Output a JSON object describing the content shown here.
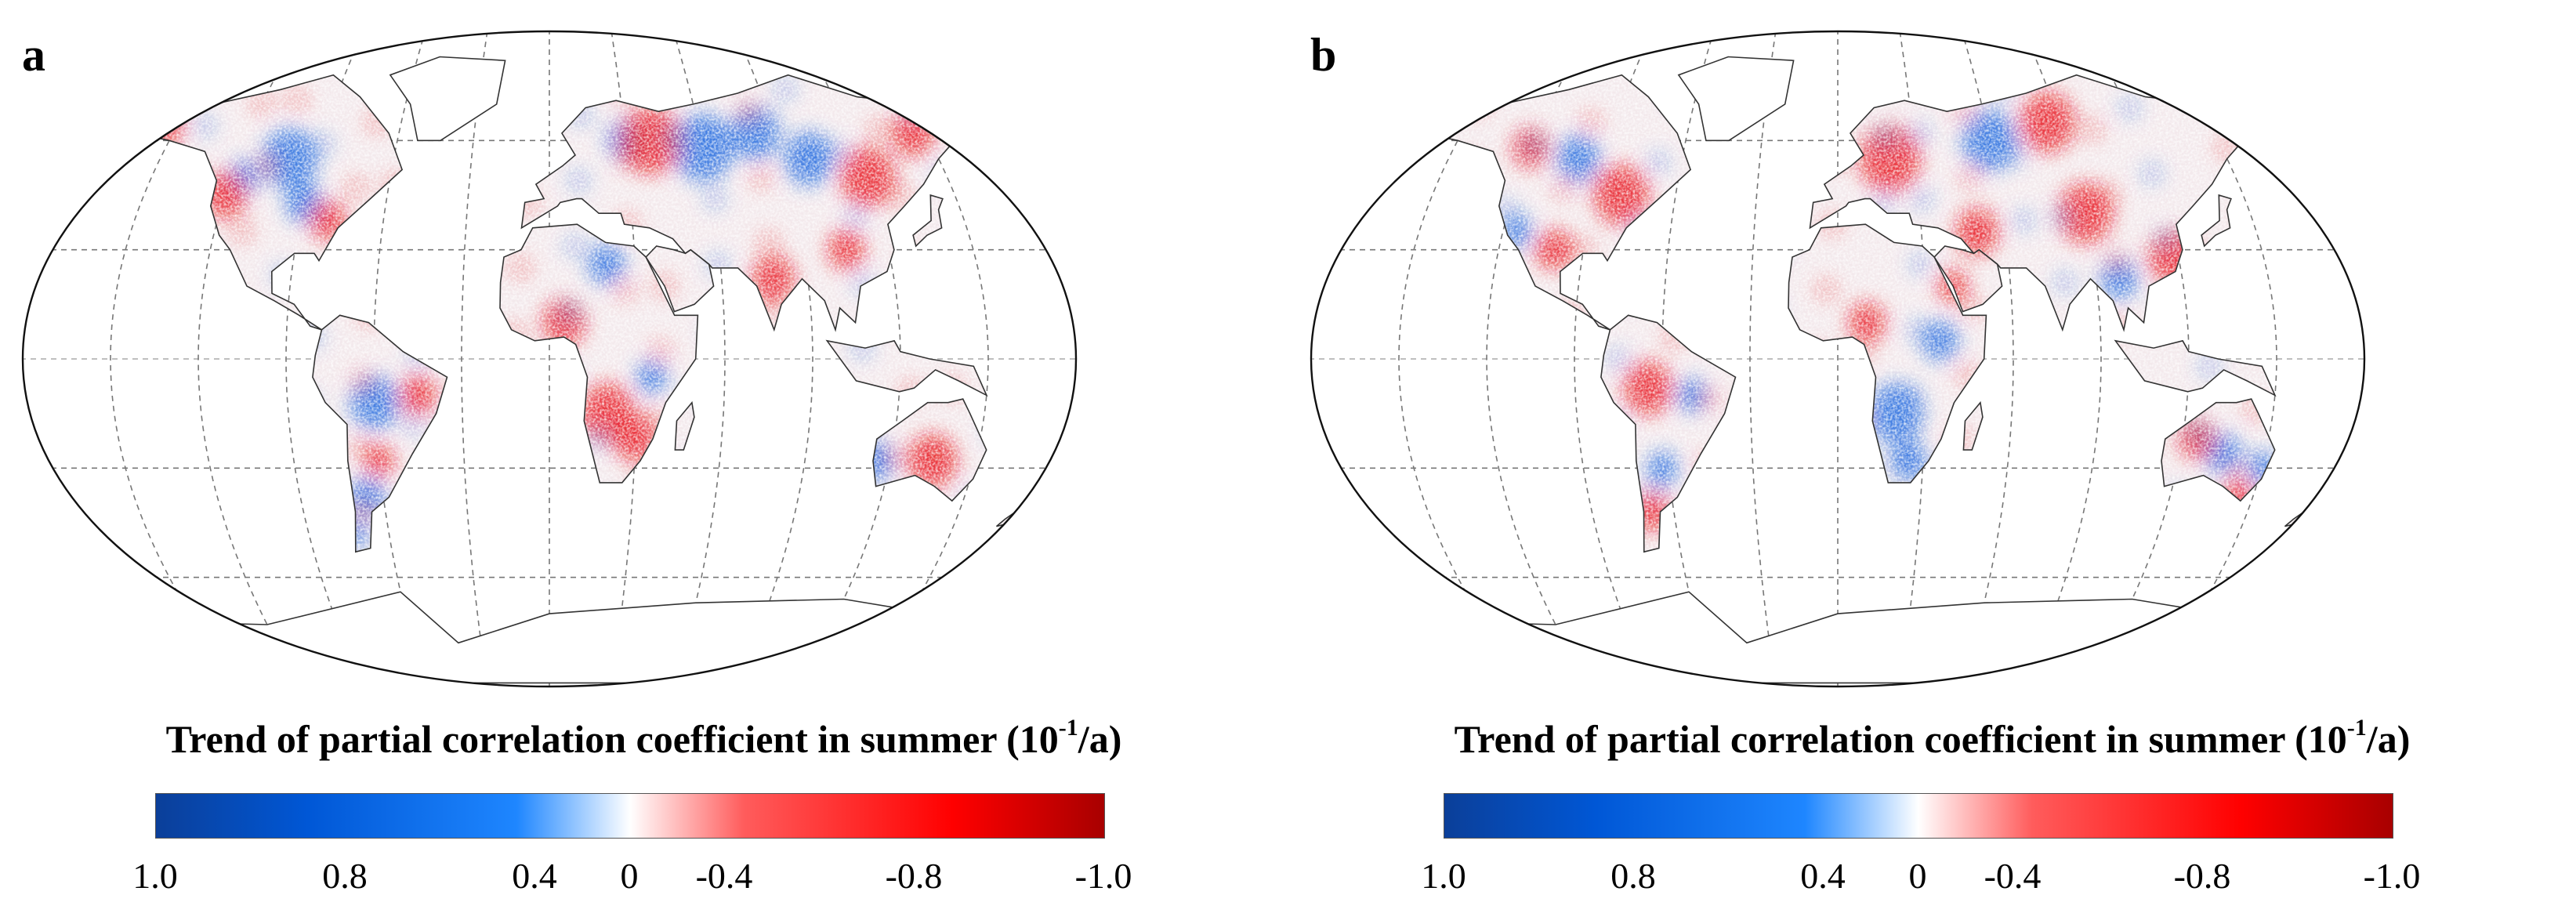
{
  "panels": [
    {
      "label": "a",
      "legend_title": "Trend of partial correlation coefficient in summer (10",
      "legend_exponent": "-1",
      "legend_unit": "/a)",
      "ticks": [
        "1.0",
        "0.8",
        "0.4",
        "0",
        "-0.4",
        "-0.8",
        "-1.0"
      ]
    },
    {
      "label": "b",
      "legend_title": "Trend of partial correlation coefficient in summer (10",
      "legend_exponent": "-1",
      "legend_unit": "/a)",
      "ticks": [
        "1.0",
        "0.8",
        "0.4",
        "0",
        "-0.4",
        "-0.8",
        "-1.0"
      ]
    }
  ],
  "colorbar": {
    "range": [
      1.0,
      -1.0
    ],
    "stops": [
      "#0b3f99",
      "#0057d6",
      "#1e86ff",
      "#ffffff",
      "#ff5c5c",
      "#ff0000",
      "#a80000"
    ]
  },
  "colors": {
    "positive": "#1565e0",
    "negative": "#e8141a",
    "graticule": "#777777",
    "coastline": "#333333"
  }
}
